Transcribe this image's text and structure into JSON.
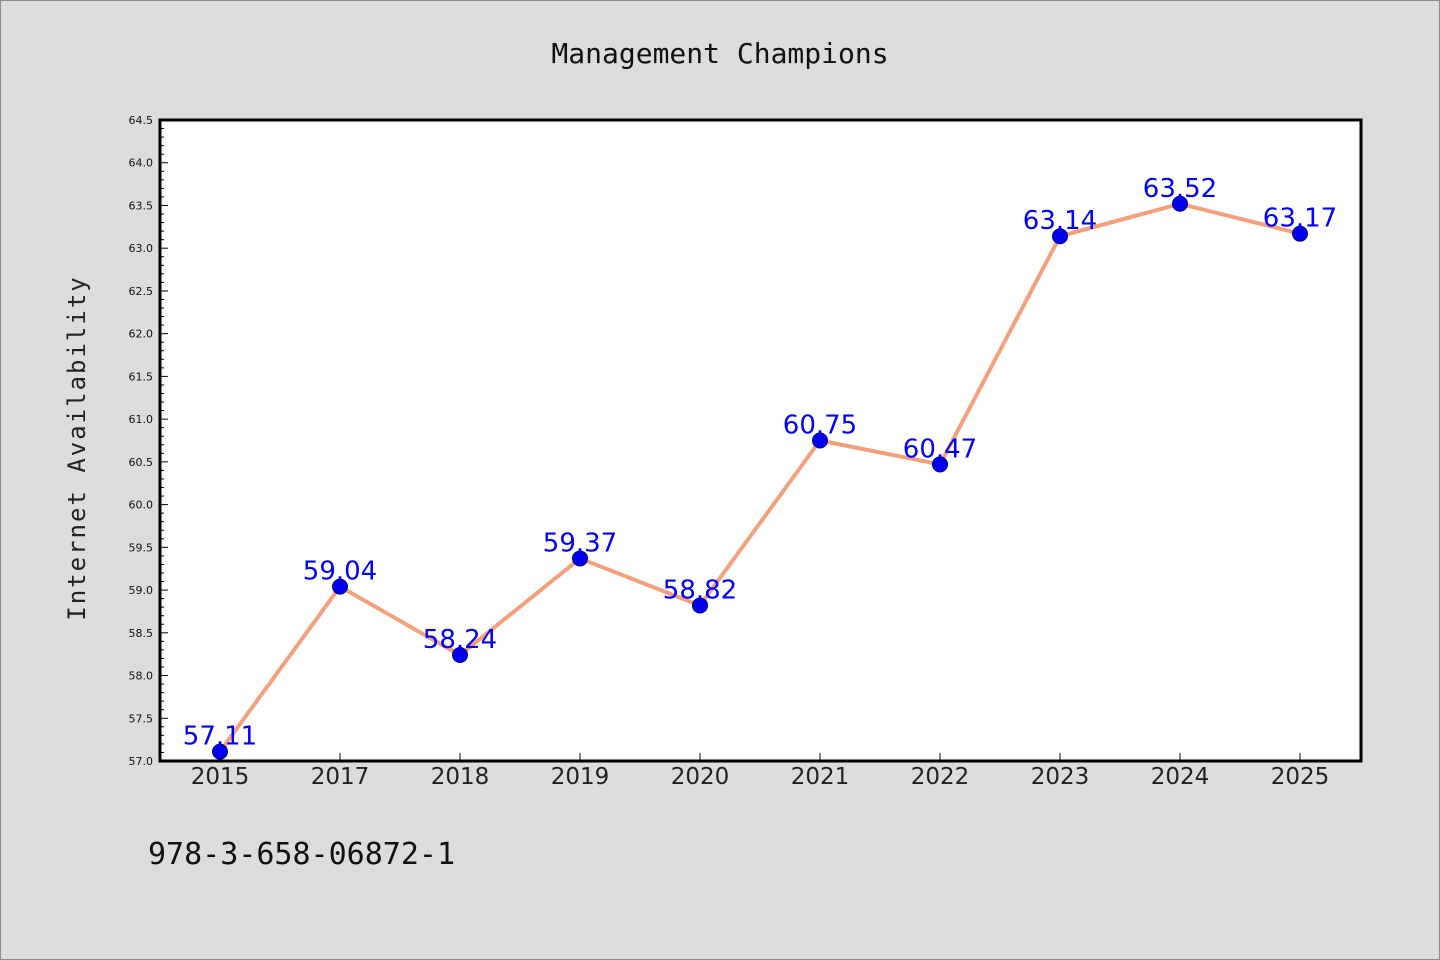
{
  "chart_data": {
    "type": "line",
    "title": "Management Champions",
    "xlabel": "",
    "ylabel": "Internet Availability",
    "categories": [
      "2015",
      "2017",
      "2018",
      "2019",
      "2020",
      "2021",
      "2022",
      "2023",
      "2024",
      "2025"
    ],
    "series": [
      {
        "values": [
          57.11,
          59.04,
          58.24,
          59.37,
          58.82,
          60.75,
          60.47,
          63.14,
          63.52,
          63.17
        ],
        "data_labels": [
          "57.11",
          "59.04",
          "58.24",
          "59.37",
          "58.82",
          "60.75",
          "60.47",
          "63.14",
          "63.52",
          "63.17"
        ]
      }
    ],
    "yticks": [
      "57.0",
      "57.5",
      "58.0",
      "58.5",
      "59.0",
      "59.5",
      "60.0",
      "60.5",
      "61.0",
      "61.5",
      "62.0",
      "62.5",
      "63.0",
      "63.5",
      "64.0",
      "64.5"
    ],
    "ylim": [
      57.0,
      64.5
    ],
    "grid": false,
    "legend": "none",
    "colors": {
      "line": "#f4a07c",
      "marker": "#0000ee",
      "data_label": "#0000ff",
      "plot_background": "#ffffff",
      "page_background": "#dcdcdc"
    }
  },
  "footer_text": "978-3-658-06872-1"
}
